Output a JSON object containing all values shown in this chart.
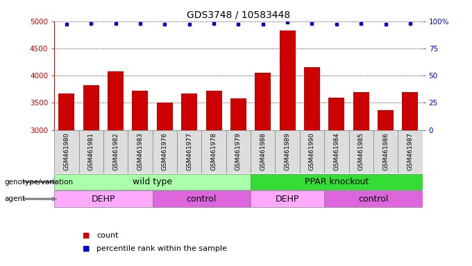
{
  "title": "GDS3748 / 10583448",
  "samples": [
    "GSM461980",
    "GSM461981",
    "GSM461982",
    "GSM461983",
    "GSM461976",
    "GSM461977",
    "GSM461978",
    "GSM461979",
    "GSM461988",
    "GSM461989",
    "GSM461990",
    "GSM461984",
    "GSM461985",
    "GSM461986",
    "GSM461987"
  ],
  "counts": [
    3665,
    3820,
    4080,
    3720,
    3500,
    3670,
    3720,
    3580,
    4050,
    4830,
    4160,
    3590,
    3700,
    3360,
    3700
  ],
  "percentile_ranks": [
    97,
    98,
    98,
    98,
    97,
    97,
    98,
    97,
    97,
    99,
    98,
    97,
    98,
    97,
    98
  ],
  "bar_color": "#cc0000",
  "dot_color": "#0000cc",
  "ylim_left": [
    3000,
    5000
  ],
  "ylim_right": [
    0,
    100
  ],
  "yticks_left": [
    3000,
    3500,
    4000,
    4500,
    5000
  ],
  "yticks_right": [
    0,
    25,
    50,
    75,
    100
  ],
  "yticklabels_right": [
    "0",
    "25",
    "50",
    "75",
    "100%"
  ],
  "grid_color": "black",
  "background_color": "#ffffff",
  "genotype_labels": [
    {
      "text": "wild type",
      "start": 0,
      "end": 8,
      "color": "#aaffaa"
    },
    {
      "text": "PPAR knockout",
      "start": 8,
      "end": 15,
      "color": "#33dd33"
    }
  ],
  "agent_labels": [
    {
      "text": "DEHP",
      "start": 0,
      "end": 4,
      "color": "#ffaaff"
    },
    {
      "text": "control",
      "start": 4,
      "end": 8,
      "color": "#dd66dd"
    },
    {
      "text": "DEHP",
      "start": 8,
      "end": 11,
      "color": "#ffaaff"
    },
    {
      "text": "control",
      "start": 11,
      "end": 15,
      "color": "#dd66dd"
    }
  ],
  "legend_items": [
    {
      "color": "#cc0000",
      "label": "count"
    },
    {
      "color": "#0000cc",
      "label": "percentile rank within the sample"
    }
  ],
  "title_fontsize": 10,
  "tick_fontsize": 7.5,
  "label_fontsize": 9,
  "sample_fontsize": 6.5,
  "legend_fontsize": 8
}
